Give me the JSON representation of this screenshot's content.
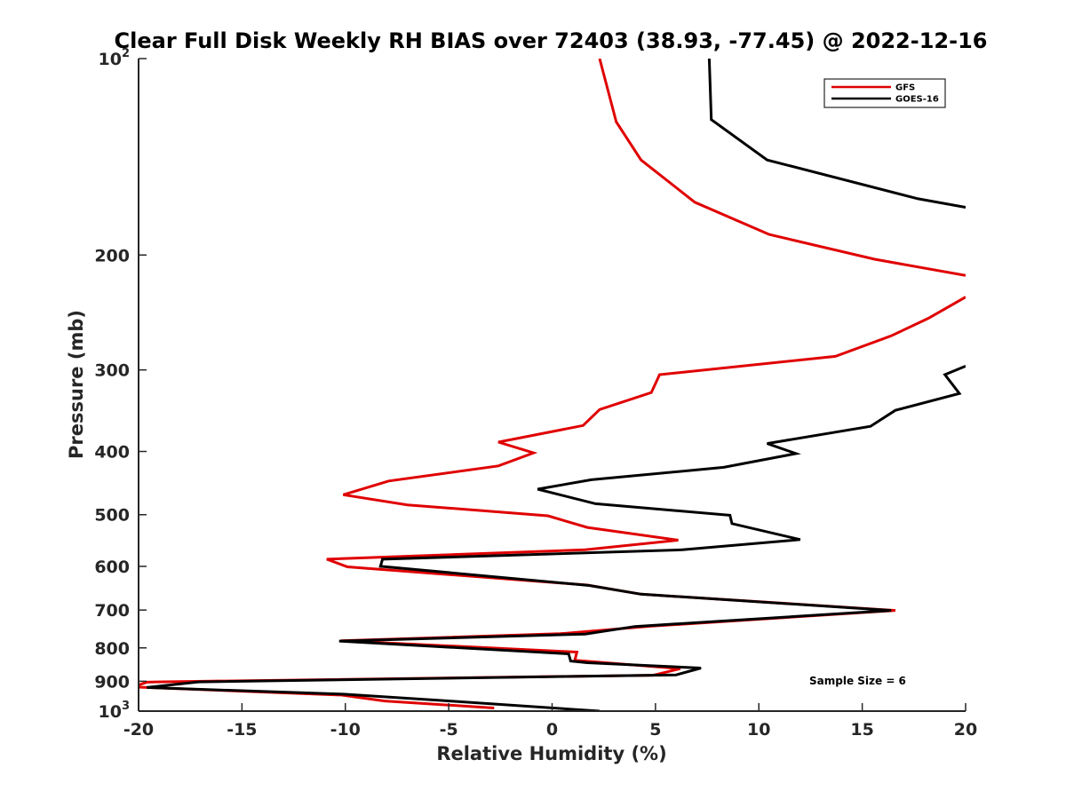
{
  "chart_data": {
    "type": "line",
    "title": "Clear Full Disk Weekly RH BIAS over 72403 (38.93, -77.45) @ 2022-12-16",
    "xlabel": "Relative Humidity (%)",
    "ylabel": "Pressure (mb)",
    "xlim": [
      -20,
      20
    ],
    "ylim": [
      100,
      1000
    ],
    "y_scale": "log",
    "y_reversed": true,
    "grid": false,
    "x_ticks": [
      -20,
      -15,
      -10,
      -5,
      0,
      5,
      10,
      15,
      20
    ],
    "x_tick_labels": [
      "-20",
      "-15",
      "-10",
      "-5",
      "0",
      "5",
      "10",
      "15",
      "20"
    ],
    "y_ticks": [
      200,
      300,
      400,
      500,
      600,
      700,
      800,
      900
    ],
    "y_tick_labels": [
      "200",
      "300",
      "400",
      "500",
      "600",
      "700",
      "800",
      "900"
    ],
    "y_limit_labels": [
      {
        "base": "10",
        "exp": "2",
        "value": 100
      },
      {
        "base": "10",
        "exp": "3",
        "value": 1000
      }
    ],
    "legend_position": "top-right",
    "annotation": "Sample Size = 6",
    "series": [
      {
        "name": "GFS",
        "color": "#e00000",
        "x": [
          2.3,
          3.1,
          4.3,
          6.9,
          10.5,
          15.6,
          20.0,
          null,
          20.0,
          18.2,
          16.4,
          13.7,
          5.2,
          4.8,
          2.3,
          1.5,
          -2.6,
          -0.9,
          -2.6,
          -7.9,
          -10.1,
          -7.0,
          -0.2,
          1.7,
          6.1,
          1.6,
          -10.9,
          -9.9,
          1.7,
          4.3,
          16.6,
          4.8,
          0.4,
          -10.2,
          1.2,
          1.1,
          6.2,
          4.9,
          -19.1,
          -19.6,
          -20.0,
          -20.0,
          -10.2,
          -8.1,
          -2.8
        ],
        "y": [
          100,
          125,
          143,
          166,
          186,
          203,
          215,
          null,
          232,
          250,
          266,
          286,
          305,
          325,
          345,
          365,
          387,
          402,
          421,
          444,
          466,
          483,
          502,
          523,
          547,
          566,
          585,
          601,
          641,
          662,
          701,
          741,
          761,
          780,
          812,
          836,
          861,
          881,
          902,
          903,
          912,
          919,
          945,
          965,
          989
        ]
      },
      {
        "name": "GOES-16",
        "color": "#000000",
        "x": [
          7.6,
          7.7,
          10.4,
          17.7,
          20.0,
          null,
          20.0,
          19.0,
          19.7,
          16.6,
          15.4,
          10.4,
          11.8,
          8.3,
          1.9,
          -0.7,
          2.1,
          8.6,
          8.7,
          12.0,
          6.3,
          -8.2,
          -8.3,
          1.8,
          4.3,
          16.4,
          4.0,
          1.6,
          -10.3,
          0.8,
          0.9,
          1.7,
          7.2,
          6.0,
          -17.1,
          -18.5,
          -19.6,
          -10.1,
          -5.2,
          2.3
        ],
        "y": [
          100,
          124,
          143,
          164,
          169,
          null,
          296,
          305,
          326,
          346,
          366,
          389,
          403,
          423,
          442,
          457,
          481,
          501,
          516,
          546,
          566,
          585,
          600,
          642,
          662,
          701,
          742,
          762,
          781,
          817,
          838,
          843,
          859,
          880,
          902,
          912,
          920,
          942,
          964,
          1000
        ]
      }
    ]
  }
}
